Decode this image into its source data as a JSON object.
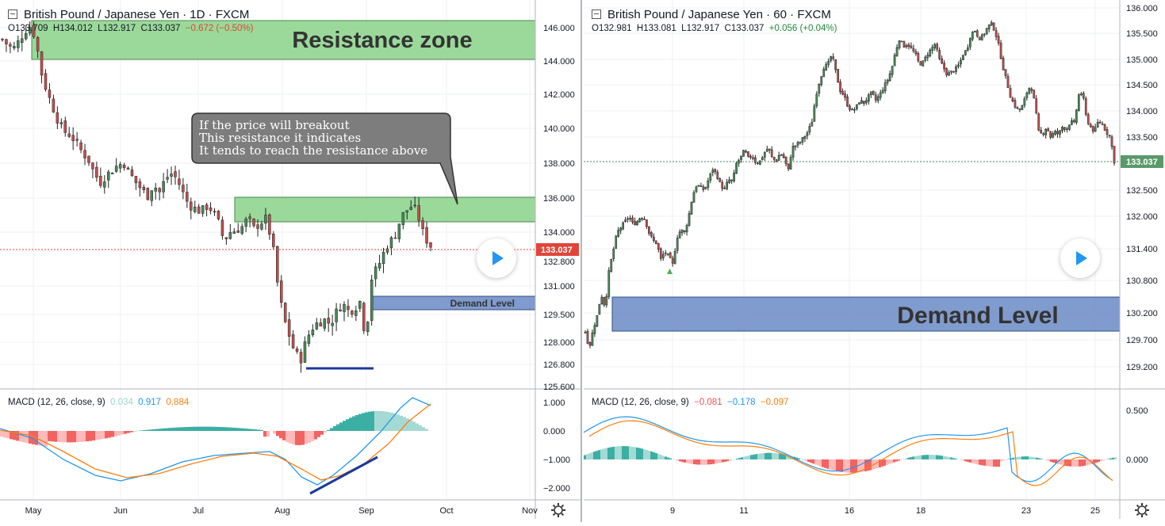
{
  "left": {
    "title": "British Pound / Japanese Yen · 1D · FXCM",
    "ohlc": {
      "o": "O133.709",
      "h": "H134.012",
      "l": "L132.917",
      "c": "C133.037",
      "chg": "−0.672 (−0.50%)"
    },
    "price_tag": "133.037",
    "resistance_label": "Resistance zone",
    "demand_label": "Demand Level",
    "callout_lines": [
      "If the price will breakout",
      "This resistance it indicates",
      "It tends to reach the resistance above"
    ],
    "macd": {
      "label": "MACD (12, 26, close, 9)",
      "v1": "0.034",
      "v2": "0.917",
      "v3": "0.884"
    }
  },
  "right": {
    "title": "British Pound / Japanese Yen · 60 · FXCM",
    "ohlc": {
      "o": "O132.981",
      "h": "H133.081",
      "l": "L132.917",
      "c": "C133.037",
      "chg": "+0.056 (+0.04%)"
    },
    "price_tag": "133.037",
    "demand_label": "Demand Level",
    "macd": {
      "label": "MACD (12, 26, close, 9)",
      "v1": "−0.081",
      "v2": "−0.178",
      "v3": "−0.097"
    }
  },
  "colors": {
    "up": "#26a69a",
    "down": "#ef5350",
    "candle_up": "#4a8a5a",
    "candle_down": "#c0504d",
    "zone_green": "#90d590",
    "zone_blue": "#7391c8",
    "macd_line": "#2196f3",
    "signal_line": "#ff7f0e"
  },
  "chart_data": [
    {
      "type": "candlestick",
      "id": "daily",
      "title": "British Pound / Japanese Yen · 1D · FXCM",
      "x_tick_labels": [
        "May",
        "Jun",
        "Jul",
        "Aug",
        "Sep",
        "Oct",
        "Nov"
      ],
      "y_tick_labels": [
        "146.000",
        "144.000",
        "142.000",
        "140.000",
        "138.000",
        "136.000",
        "134.000",
        "132.800",
        "131.000",
        "129.500",
        "128.000",
        "126.800",
        "125.600"
      ],
      "y_tick_values": [
        146.0,
        144.0,
        142.0,
        140.0,
        138.0,
        136.0,
        134.0,
        132.8,
        131.0,
        129.5,
        128.0,
        126.8,
        125.6
      ],
      "last_price": 133.037,
      "close_path": [
        [
          0,
          145.3
        ],
        [
          4,
          145.0
        ],
        [
          9,
          144.7
        ],
        [
          14,
          145.2
        ],
        [
          19,
          145.8
        ],
        [
          24,
          146.1
        ],
        [
          28,
          145.4
        ],
        [
          33,
          143.3
        ],
        [
          38,
          142.1
        ],
        [
          43,
          141.2
        ],
        [
          48,
          140.3
        ],
        [
          53,
          139.8
        ],
        [
          58,
          139.6
        ],
        [
          63,
          139.1
        ],
        [
          68,
          138.6
        ],
        [
          73,
          138.2
        ],
        [
          78,
          137.4
        ],
        [
          83,
          136.9
        ],
        [
          88,
          137.3
        ],
        [
          93,
          137.6
        ],
        [
          98,
          137.9
        ],
        [
          103,
          138.0
        ],
        [
          108,
          137.4
        ],
        [
          113,
          136.9
        ],
        [
          118,
          136.5
        ],
        [
          123,
          136.1
        ],
        [
          128,
          136.8
        ],
        [
          133,
          136.3
        ],
        [
          138,
          137.1
        ],
        [
          143,
          137.4
        ],
        [
          148,
          137.1
        ],
        [
          153,
          136.3
        ],
        [
          158,
          135.6
        ],
        [
          163,
          135.4
        ],
        [
          168,
          135.2
        ],
        [
          173,
          135.5
        ],
        [
          178,
          135.3
        ],
        [
          183,
          134.6
        ],
        [
          188,
          133.4
        ],
        [
          193,
          134.0
        ],
        [
          198,
          134.1
        ],
        [
          203,
          134.3
        ],
        [
          208,
          134.8
        ],
        [
          213,
          134.2
        ],
        [
          218,
          134.5
        ],
        [
          223,
          134.8
        ],
        [
          228,
          133.6
        ],
        [
          233,
          131.2
        ],
        [
          238,
          129.4
        ],
        [
          243,
          128.4
        ],
        [
          248,
          127.4
        ],
        [
          253,
          127.1
        ],
        [
          258,
          128.2
        ],
        [
          263,
          128.8
        ],
        [
          268,
          129.1
        ],
        [
          273,
          129.2
        ],
        [
          278,
          129.0
        ],
        [
          283,
          129.6
        ],
        [
          288,
          130.1
        ],
        [
          293,
          129.7
        ],
        [
          298,
          129.8
        ],
        [
          303,
          130.2
        ],
        [
          308,
          128.2
        ],
        [
          313,
          131.4
        ],
        [
          318,
          131.9
        ],
        [
          323,
          132.6
        ],
        [
          328,
          133.3
        ],
        [
          333,
          133.8
        ],
        [
          338,
          134.9
        ],
        [
          343,
          135.3
        ],
        [
          348,
          135.6
        ],
        [
          353,
          134.8
        ],
        [
          358,
          133.6
        ],
        [
          363,
          133.04
        ]
      ],
      "lines_drawn": [
        {
          "name": "resistance_zone_upper",
          "from": 144.0,
          "to": 146.5
        },
        {
          "name": "resistance_zone_lower",
          "from": 134.6,
          "to": 136.0
        },
        {
          "name": "demand_zone",
          "from": 129.6,
          "to": 130.3
        },
        {
          "name": "support_line",
          "value": 126.75
        }
      ],
      "macd_axis_labels": [
        "1.000",
        "0.000",
        "−1.000",
        "−2.000"
      ],
      "macd_axis_values": [
        1.0,
        0.0,
        -1.0,
        -2.0
      ]
    },
    {
      "type": "candlestick",
      "id": "hourly",
      "title": "British Pound / Japanese Yen · 60 · FXCM",
      "x_tick_labels": [
        "9",
        "11",
        "16",
        "18",
        "23",
        "25"
      ],
      "y_tick_labels": [
        "136.000",
        "135.500",
        "135.000",
        "134.500",
        "134.000",
        "133.500",
        "133.037",
        "132.500",
        "132.000",
        "131.400",
        "130.800",
        "130.200",
        "129.700",
        "129.200"
      ],
      "y_tick_values": [
        136.0,
        135.5,
        135.0,
        134.5,
        134.0,
        133.5,
        133.037,
        132.5,
        132.0,
        131.4,
        130.8,
        130.2,
        129.7,
        129.2
      ],
      "last_price": 133.037,
      "close_path": [
        [
          0,
          129.85
        ],
        [
          5,
          129.55
        ],
        [
          10,
          129.9
        ],
        [
          15,
          130.15
        ],
        [
          20,
          130.55
        ],
        [
          25,
          130.3
        ],
        [
          30,
          131.0
        ],
        [
          35,
          131.35
        ],
        [
          40,
          131.7
        ],
        [
          45,
          131.8
        ],
        [
          50,
          131.9
        ],
        [
          55,
          132.0
        ],
        [
          60,
          131.85
        ],
        [
          65,
          131.9
        ],
        [
          70,
          132.0
        ],
        [
          75,
          131.95
        ],
        [
          80,
          131.7
        ],
        [
          85,
          131.55
        ],
        [
          90,
          131.5
        ],
        [
          95,
          131.2
        ],
        [
          100,
          131.35
        ],
        [
          105,
          131.25
        ],
        [
          110,
          131.1
        ],
        [
          115,
          131.6
        ],
        [
          120,
          131.75
        ],
        [
          125,
          131.7
        ],
        [
          130,
          132.0
        ],
        [
          135,
          132.4
        ],
        [
          140,
          132.6
        ],
        [
          145,
          132.55
        ],
        [
          150,
          132.5
        ],
        [
          155,
          132.7
        ],
        [
          160,
          132.9
        ],
        [
          165,
          132.8
        ],
        [
          170,
          132.6
        ],
        [
          175,
          132.5
        ],
        [
          180,
          132.7
        ],
        [
          185,
          132.65
        ],
        [
          190,
          133.0
        ],
        [
          195,
          133.1
        ],
        [
          200,
          133.25
        ],
        [
          205,
          133.1
        ],
        [
          210,
          133.15
        ],
        [
          215,
          133.0
        ],
        [
          220,
          133.05
        ],
        [
          225,
          133.2
        ],
        [
          230,
          133.3
        ],
        [
          235,
          133.1
        ],
        [
          240,
          133.05
        ],
        [
          245,
          133.2
        ],
        [
          250,
          133.1
        ],
        [
          255,
          132.85
        ],
        [
          260,
          133.3
        ],
        [
          265,
          133.35
        ],
        [
          270,
          133.4
        ],
        [
          275,
          133.5
        ],
        [
          280,
          133.6
        ],
        [
          285,
          133.8
        ],
        [
          290,
          134.3
        ],
        [
          295,
          134.6
        ],
        [
          300,
          134.85
        ],
        [
          305,
          134.9
        ],
        [
          310,
          135.1
        ],
        [
          315,
          134.75
        ],
        [
          320,
          134.4
        ],
        [
          325,
          134.3
        ],
        [
          330,
          134.1
        ],
        [
          335,
          134.0
        ],
        [
          340,
          134.05
        ],
        [
          345,
          134.2
        ],
        [
          350,
          134.15
        ],
        [
          355,
          134.25
        ],
        [
          360,
          134.35
        ],
        [
          365,
          134.2
        ],
        [
          370,
          134.3
        ],
        [
          375,
          134.45
        ],
        [
          380,
          134.6
        ],
        [
          385,
          134.8
        ],
        [
          390,
          135.15
        ],
        [
          395,
          135.4
        ],
        [
          400,
          135.25
        ],
        [
          405,
          135.3
        ],
        [
          410,
          135.2
        ],
        [
          415,
          135.1
        ],
        [
          420,
          134.9
        ],
        [
          425,
          134.95
        ],
        [
          430,
          135.1
        ],
        [
          435,
          135.2
        ],
        [
          440,
          135.3
        ],
        [
          445,
          135.0
        ],
        [
          450,
          134.85
        ],
        [
          455,
          134.7
        ],
        [
          460,
          134.75
        ],
        [
          465,
          134.8
        ],
        [
          470,
          134.9
        ],
        [
          475,
          135.1
        ],
        [
          480,
          135.2
        ],
        [
          485,
          135.5
        ],
        [
          490,
          135.55
        ],
        [
          495,
          135.4
        ],
        [
          500,
          135.45
        ],
        [
          505,
          135.6
        ],
        [
          510,
          135.7
        ],
        [
          515,
          135.55
        ],
        [
          520,
          135.25
        ],
        [
          525,
          134.85
        ],
        [
          530,
          134.55
        ],
        [
          535,
          134.25
        ],
        [
          540,
          134.1
        ],
        [
          545,
          134.0
        ],
        [
          550,
          134.1
        ],
        [
          555,
          134.35
        ],
        [
          560,
          134.5
        ],
        [
          565,
          134.15
        ],
        [
          570,
          133.6
        ],
        [
          575,
          133.55
        ],
        [
          580,
          133.7
        ],
        [
          585,
          133.5
        ],
        [
          590,
          133.6
        ],
        [
          595,
          133.55
        ],
        [
          600,
          133.7
        ],
        [
          605,
          133.65
        ],
        [
          610,
          133.8
        ],
        [
          615,
          133.75
        ],
        [
          620,
          134.3
        ],
        [
          625,
          134.35
        ],
        [
          630,
          133.85
        ],
        [
          635,
          133.7
        ],
        [
          640,
          133.6
        ],
        [
          645,
          133.8
        ],
        [
          650,
          133.75
        ],
        [
          655,
          133.6
        ],
        [
          660,
          133.5
        ],
        [
          665,
          133.04
        ]
      ],
      "lines_drawn": [
        {
          "name": "demand_zone",
          "from": 129.8,
          "to": 130.5
        }
      ],
      "macd_axis_labels": [
        "0.500",
        "0.000"
      ],
      "macd_axis_values": [
        0.5,
        0.0
      ]
    }
  ]
}
